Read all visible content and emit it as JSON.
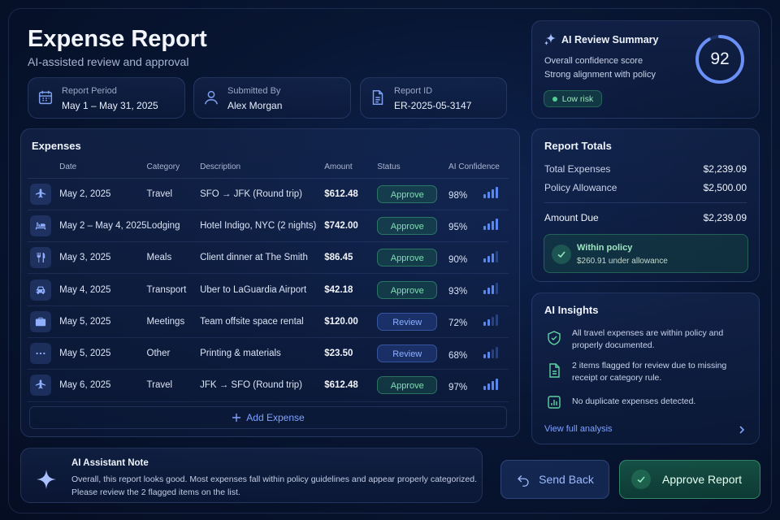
{
  "header": {
    "title": "Expense Report",
    "subtitle": "AI-assisted review and approval"
  },
  "meta": {
    "period_label": "Report Period",
    "period_value": "May 1 – May 31, 2025",
    "submitted_label": "Submitted By",
    "submitted_value": "Alex Morgan",
    "id_label": "Report ID",
    "id_value": "ER-2025-05-3147"
  },
  "expenses": {
    "title": "Expenses",
    "columns": [
      "Date",
      "Category",
      "Description",
      "Amount",
      "Status",
      "AI Confidence"
    ],
    "rows": [
      {
        "icon": "plane-icon",
        "date": "May 2, 2025",
        "category": "Travel",
        "description": "SFO → JFK (Round trip)",
        "amount": "$612.48",
        "status": "Approve",
        "confidence": "98%",
        "confidence_value": 0.98
      },
      {
        "icon": "bed-icon",
        "date": "May 2 – May 4, 2025",
        "category": "Lodging",
        "description": "Hotel Indigo, NYC (2 nights)",
        "amount": "$742.00",
        "status": "Approve",
        "confidence": "95%",
        "confidence_value": 0.95
      },
      {
        "icon": "utensils-icon",
        "date": "May 3, 2025",
        "category": "Meals",
        "description": "Client dinner at The Smith",
        "amount": "$86.45",
        "status": "Approve",
        "confidence": "90%",
        "confidence_value": 0.9
      },
      {
        "icon": "car-icon",
        "date": "May 4, 2025",
        "category": "Transport",
        "description": "Uber to LaGuardia Airport",
        "amount": "$42.18",
        "status": "Approve",
        "confidence": "93%",
        "confidence_value": 0.93
      },
      {
        "icon": "briefcase-icon",
        "date": "May 5, 2025",
        "category": "Meetings",
        "description": "Team offsite space rental",
        "amount": "$120.00",
        "status": "Review",
        "confidence": "72%",
        "confidence_value": 0.72
      },
      {
        "icon": "more-icon",
        "date": "May 5, 2025",
        "category": "Other",
        "description": "Printing & materials",
        "amount": "$23.50",
        "status": "Review",
        "confidence": "68%",
        "confidence_value": 0.68
      },
      {
        "icon": "plane-icon",
        "date": "May 6, 2025",
        "category": "Travel",
        "description": "JFK → SFO (Round trip)",
        "amount": "$612.48",
        "status": "Approve",
        "confidence": "97%",
        "confidence_value": 0.97
      }
    ],
    "add_label": "Add Expense"
  },
  "note": {
    "title": "AI Assistant Note",
    "body": "Overall, this report looks good. Most expenses fall within policy guidelines and appear properly categorized. Please review the 2 flagged items on the list."
  },
  "actions": {
    "send_back": "Send Back",
    "approve": "Approve Report"
  },
  "ai_summary": {
    "title": "AI Review Summary",
    "line1": "Overall confidence score",
    "line2": "Strong alignment with policy",
    "risk": "Low risk",
    "score": "92",
    "score_value": 92
  },
  "totals": {
    "title": "Report Totals",
    "total_label": "Total Expenses",
    "total_value": "$2,239.09",
    "allowance_label": "Policy Allowance",
    "allowance_value": "$2,500.00",
    "due_label": "Amount Due",
    "due_value": "$2,239.09",
    "policy_title": "Within policy",
    "policy_sub": "$260.91 under allowance"
  },
  "insights": {
    "title": "AI Insights",
    "items": [
      "All travel expenses are within policy and properly documented.",
      "2 items flagged for review due to missing receipt or category rule.",
      "No duplicate expenses detected."
    ],
    "view_all": "View full analysis"
  },
  "colors": {
    "accent": "#5a86f0",
    "approve": "#7fe0b0",
    "review": "#8fb0ff",
    "background": "#081633"
  }
}
